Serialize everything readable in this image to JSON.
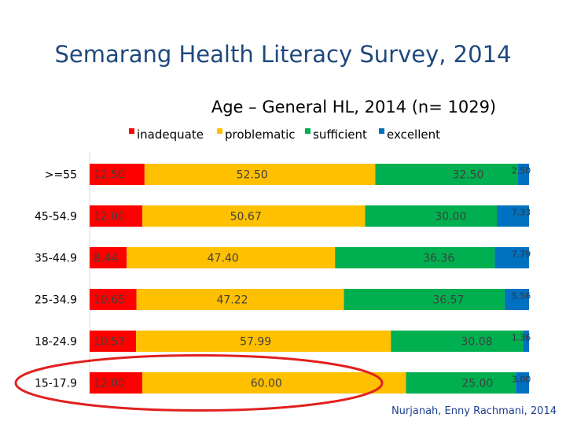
{
  "slide_title": "Semarang Health Literacy Survey, 2014",
  "credit": "Nurjanah, Enny Rachmani, 2014",
  "colors": {
    "inadequate": "#ff0000",
    "problematic": "#ffc000",
    "sufficient": "#00b050",
    "excellent": "#0070c0",
    "highlight_ellipse": "#e0201e",
    "label_dark": "#404040",
    "label_light": "#333333"
  },
  "chart_data": {
    "type": "bar",
    "orientation": "horizontal",
    "stacked": true,
    "title": "Age – General HL, 2014 (n= 1029)",
    "legend_position": "top",
    "categories": [
      ">=55",
      "45-54.9",
      "35-44.9",
      "25-34.9",
      "18-24.9",
      "15-17.9"
    ],
    "series": [
      {
        "name": "inadequate",
        "values": [
          12.5,
          12.0,
          8.44,
          10.65,
          10.57,
          12.0
        ]
      },
      {
        "name": "problematic",
        "values": [
          52.5,
          50.67,
          47.4,
          47.22,
          57.99,
          60.0
        ]
      },
      {
        "name": "sufficient",
        "values": [
          32.5,
          30.0,
          36.36,
          36.57,
          30.08,
          25.0
        ]
      },
      {
        "name": "excellent",
        "values": [
          2.5,
          7.33,
          7.79,
          5.56,
          1.36,
          3.0
        ]
      }
    ],
    "value_labels": [
      [
        "12.50",
        "52.50",
        "32.50",
        "2.50"
      ],
      [
        "12.00",
        "50.67",
        "30.00",
        "7.33"
      ],
      [
        "8.44",
        "47.40",
        "36.36",
        "7.79"
      ],
      [
        "10.65",
        "47.22",
        "36.57",
        "5.56"
      ],
      [
        "10.57",
        "57.99",
        "30.08",
        "1.36"
      ],
      [
        "12.00",
        "60.00",
        "25.00",
        "3.00"
      ]
    ],
    "xlim": [
      0,
      100
    ],
    "grid": false,
    "highlighted_category": "15-17.9"
  }
}
